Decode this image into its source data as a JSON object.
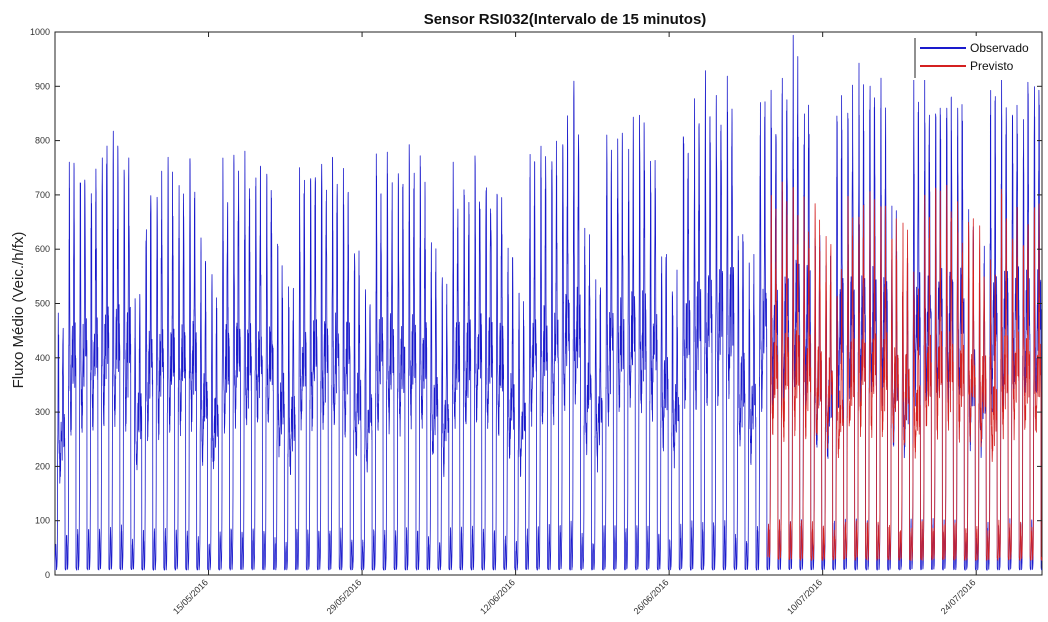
{
  "chart_data": {
    "type": "line",
    "title": "Sensor RSI032(Intervalo de 15 minutos)",
    "xlabel": "",
    "ylabel": "Fluxo Médio (Veic./h/fx)",
    "ylim": [
      0,
      1000
    ],
    "yticks": [
      "0",
      "100",
      "200",
      "300",
      "400",
      "500",
      "600",
      "700",
      "800",
      "900",
      "1000"
    ],
    "x_range": [
      "2016-05-01",
      "2016-07-30"
    ],
    "xticks": [
      "15/05/2016",
      "29/05/2016",
      "12/06/2016",
      "26/06/2016",
      "10/07/2016",
      "24/07/2016"
    ],
    "grid": false,
    "legend_position": "top-right",
    "forecast_start": "2016-07-05",
    "series": [
      {
        "name": "Observado",
        "color": "#1a1acc",
        "points_per_day": 96,
        "daily_min": 10,
        "daily_peak": [
          450,
          700,
          710,
          720,
          760,
          750,
          740,
          500,
          680,
          700,
          700,
          690,
          710,
          560,
          500,
          700,
          720,
          700,
          710,
          700,
          560,
          500,
          700,
          720,
          710,
          720,
          700,
          560,
          500,
          710,
          720,
          700,
          730,
          710,
          560,
          500,
          700,
          710,
          730,
          720,
          700,
          560,
          500,
          720,
          740,
          750,
          800,
          820,
          600,
          520,
          760,
          770,
          780,
          790,
          740,
          600,
          530,
          800,
          820,
          840,
          850,
          860,
          620,
          550,
          820,
          840,
          850,
          900,
          860,
          620,
          560,
          830,
          850,
          860,
          850,
          840,
          630,
          570,
          840,
          850,
          860,
          840,
          850,
          630,
          570,
          840,
          850,
          860,
          850,
          860
        ]
      },
      {
        "name": "Previsto",
        "color": "#d42020",
        "points_per_day": 96,
        "start": "2016-07-05",
        "daily_min": 30,
        "daily_peak": [
          640,
          650,
          660,
          650,
          620,
          600,
          520,
          650,
          660,
          660,
          650,
          620,
          600,
          520,
          650,
          660,
          660,
          650,
          620,
          600,
          520,
          650,
          660,
          650,
          640
        ]
      }
    ]
  }
}
